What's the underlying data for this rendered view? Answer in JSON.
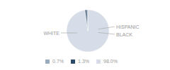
{
  "chart_data": {
    "type": "pie",
    "categories": [
      "WHITE",
      "HISPANIC",
      "BLACK"
    ],
    "values": [
      98.0,
      1.3,
      0.7
    ],
    "value_labels": [
      "98.0%",
      "1.3%",
      "0.7%"
    ],
    "colors": [
      "#d6dde8",
      "#2d4a6b",
      "#9aabbe"
    ],
    "legend": "bottom"
  }
}
